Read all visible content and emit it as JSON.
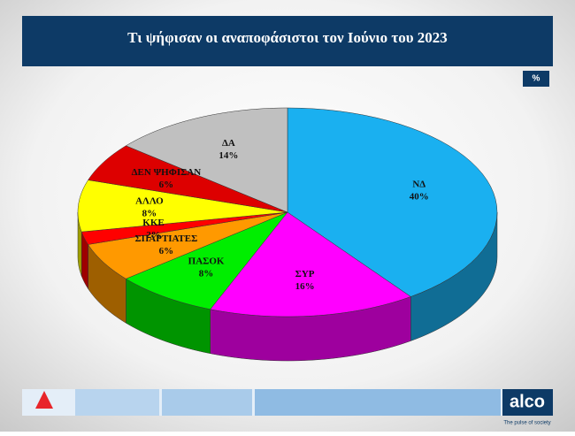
{
  "chart_data": {
    "type": "pie",
    "title": "Τι ψήφισαν οι αναποφάσιστοι τον Ιούνιο του 2023",
    "unit": "%",
    "categories": [
      "ΝΔ",
      "ΣΥΡ",
      "ΠΑΣΟΚ",
      "ΣΠΑΡΤΙΑΤΕΣ",
      "ΚΚΕ",
      "ΑΛΛΟ",
      "ΔΕΝ ΨΗΦΙΣΑΝ",
      "ΔΑ"
    ],
    "values": [
      40,
      16,
      8,
      6,
      2,
      8,
      6,
      14
    ],
    "value_labels": [
      "40%",
      "16%",
      "8%",
      "6%",
      "2%",
      "8%",
      "6%",
      "14%"
    ],
    "colors": [
      "#1ab0f0",
      "#ff00ff",
      "#00ee00",
      "#ff9900",
      "#ff0000",
      "#ffff00",
      "#dd0000",
      "#c0c0c0"
    ]
  },
  "footer": {
    "brand": "alco",
    "tagline": "The pulse of society"
  }
}
